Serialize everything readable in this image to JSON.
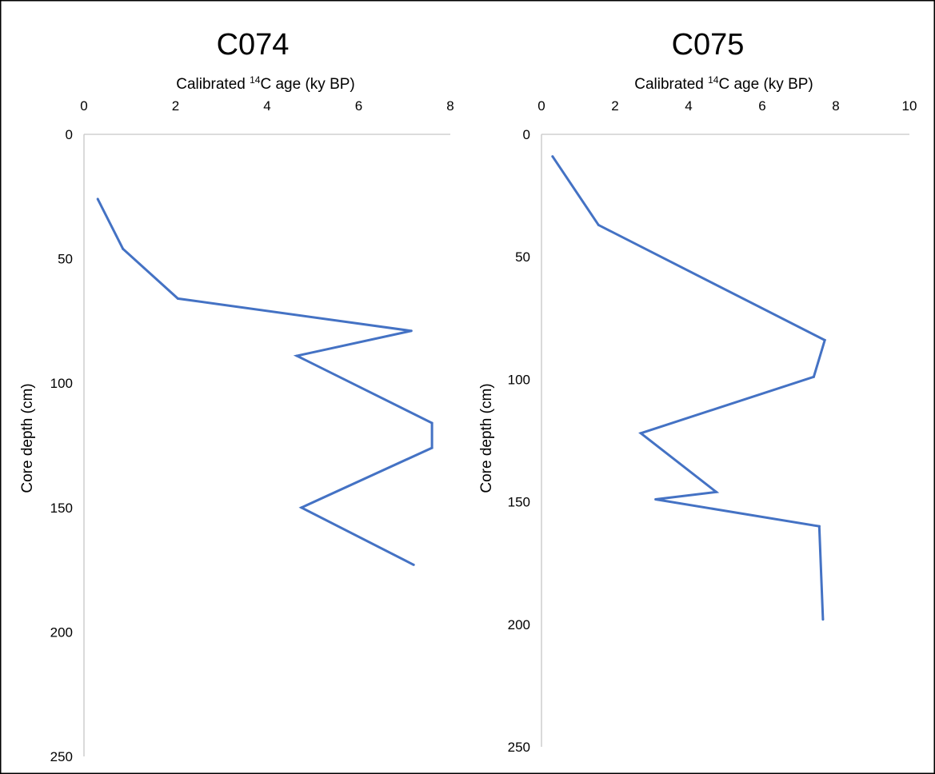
{
  "chart_data": [
    {
      "type": "line",
      "title": "C074",
      "xlabel": "Calibrated 14C age (ky BP)",
      "xlabel_parts": {
        "prefix": "Calibrated ",
        "superscript": "14",
        "suffix": "C age (ky BP)"
      },
      "ylabel": "Core depth (cm)",
      "xlim": [
        0,
        8
      ],
      "ylim": [
        0,
        250
      ],
      "y_inverted": true,
      "x_axis_position": "top",
      "xticks": [
        0,
        2,
        4,
        6,
        8
      ],
      "yticks": [
        0,
        50,
        100,
        150,
        200,
        250
      ],
      "grid": false,
      "legend": "none",
      "series": [
        {
          "color": "#4472C4",
          "points": [
            {
              "age": 0.3,
              "depth": 26
            },
            {
              "age": 0.85,
              "depth": 46
            },
            {
              "age": 2.05,
              "depth": 66
            },
            {
              "age": 7.15,
              "depth": 79
            },
            {
              "age": 4.65,
              "depth": 89
            },
            {
              "age": 7.6,
              "depth": 116
            },
            {
              "age": 7.6,
              "depth": 126
            },
            {
              "age": 4.75,
              "depth": 150
            },
            {
              "age": 7.2,
              "depth": 173
            }
          ]
        }
      ]
    },
    {
      "type": "line",
      "title": "C075",
      "xlabel": "Calibrated 14C age (ky BP)",
      "xlabel_parts": {
        "prefix": "Calibrated ",
        "superscript": "14",
        "suffix": "C age (ky BP)"
      },
      "ylabel": "Core depth (cm)",
      "xlim": [
        0,
        10
      ],
      "ylim": [
        0,
        250
      ],
      "y_inverted": true,
      "x_axis_position": "top",
      "xticks": [
        0,
        2,
        4,
        6,
        8,
        10
      ],
      "yticks": [
        0,
        50,
        100,
        150,
        200,
        250
      ],
      "grid": false,
      "legend": "none",
      "series": [
        {
          "color": "#4472C4",
          "points": [
            {
              "age": 0.3,
              "depth": 9
            },
            {
              "age": 1.55,
              "depth": 37
            },
            {
              "age": 7.7,
              "depth": 84
            },
            {
              "age": 7.4,
              "depth": 99
            },
            {
              "age": 2.7,
              "depth": 122
            },
            {
              "age": 4.75,
              "depth": 146
            },
            {
              "age": 3.1,
              "depth": 149
            },
            {
              "age": 7.55,
              "depth": 160
            },
            {
              "age": 7.65,
              "depth": 198
            }
          ]
        }
      ]
    }
  ]
}
